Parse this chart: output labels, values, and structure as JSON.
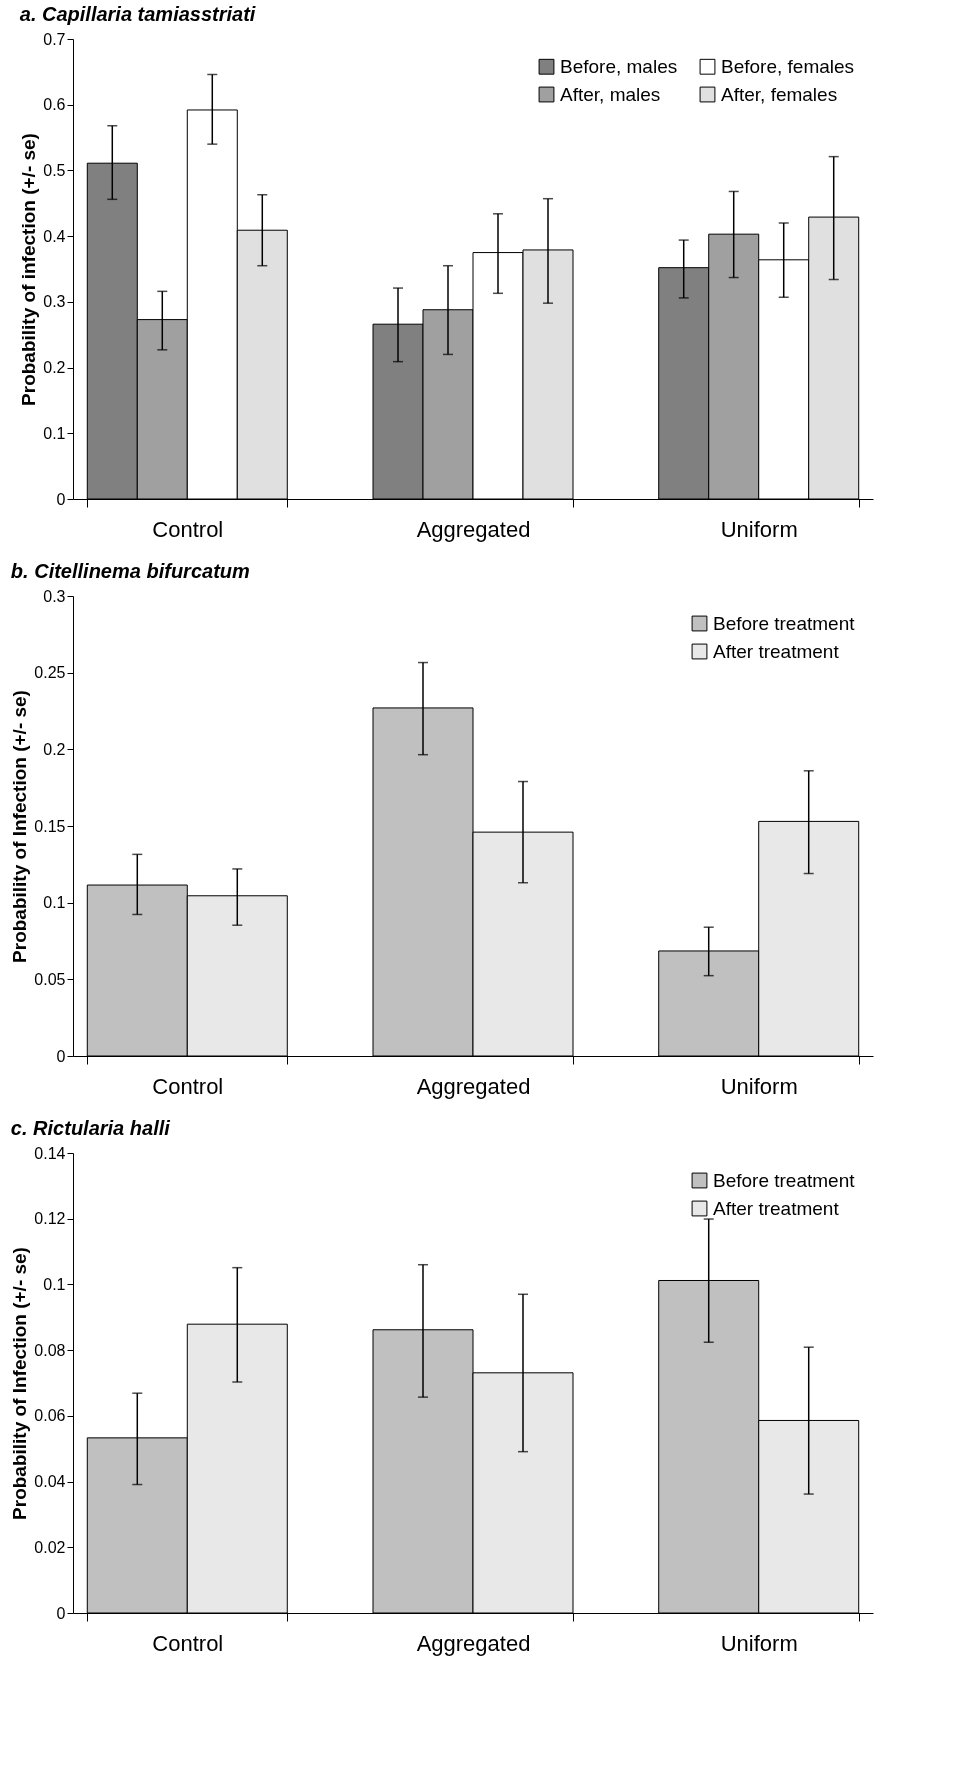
{
  "chart_data": [
    {
      "type": "bar",
      "title": "a. Capillaria tamiasstriati",
      "ylabel": "Probability of infection (+/- se)",
      "categories": [
        "Control",
        "Aggregated",
        "Uniform"
      ],
      "ylim": [
        0,
        0.7
      ],
      "yticks": [
        0,
        0.1,
        0.2,
        0.3,
        0.4,
        0.5,
        0.6,
        0.7
      ],
      "legend": "top right",
      "series": [
        {
          "name": "Before, males",
          "color": "#808080",
          "values": [
            0.511,
            0.266,
            0.352
          ],
          "errors": [
            [
              0.456,
              0.568
            ],
            [
              0.209,
              0.321
            ],
            [
              0.306,
              0.394
            ]
          ]
        },
        {
          "name": "After, males",
          "color": "#a0a0a0",
          "values": [
            0.273,
            0.288,
            0.403
          ],
          "errors": [
            [
              0.227,
              0.316
            ],
            [
              0.22,
              0.355
            ],
            [
              0.337,
              0.468
            ]
          ]
        },
        {
          "name": "Before, females",
          "color": "#ffffff",
          "values": [
            0.592,
            0.375,
            0.364
          ],
          "errors": [
            [
              0.54,
              0.646
            ],
            [
              0.313,
              0.434
            ],
            [
              0.307,
              0.42
            ]
          ]
        },
        {
          "name": "After, females",
          "color": "#e0e0e0",
          "values": [
            0.409,
            0.379,
            0.429
          ],
          "errors": [
            [
              0.355,
              0.463
            ],
            [
              0.298,
              0.457
            ],
            [
              0.334,
              0.521
            ]
          ]
        }
      ]
    },
    {
      "type": "bar",
      "title": "b. Citellinema bifurcatum",
      "ylabel": "Probability of Infection (+/- se)",
      "categories": [
        "Control",
        "Aggregated",
        "Uniform"
      ],
      "ylim": [
        0,
        0.3
      ],
      "yticks": [
        0,
        0.05,
        0.1,
        0.15,
        0.2,
        0.25,
        0.3
      ],
      "legend": "top right",
      "series": [
        {
          "name": "Before treatment",
          "color": "#c0c0c0",
          "values": [
            0.1115,
            0.227,
            0.0685
          ],
          "errors": [
            [
              0.0923,
              0.1315
            ],
            [
              0.1965,
              0.2566
            ],
            [
              0.0524,
              0.084
            ]
          ]
        },
        {
          "name": "After treatment",
          "color": "#e8e8e8",
          "values": [
            0.1045,
            0.146,
            0.153
          ],
          "errors": [
            [
              0.0853,
              0.122
            ],
            [
              0.113,
              0.179
            ],
            [
              0.119,
              0.186
            ]
          ]
        }
      ]
    },
    {
      "type": "bar",
      "title": "c. Rictularia halli",
      "ylabel": "Probability of Infection (+/- se)",
      "categories": [
        "Control",
        "Aggregated",
        "Uniform"
      ],
      "ylim": [
        0,
        0.14
      ],
      "yticks": [
        0,
        0.02,
        0.04,
        0.06,
        0.08,
        0.1,
        0.12,
        0.14
      ],
      "legend": "top right",
      "series": [
        {
          "name": "Before treatment",
          "color": "#c0c0c0",
          "values": [
            0.0533,
            0.0862,
            0.1012
          ],
          "errors": [
            [
              0.0391,
              0.0669
            ],
            [
              0.0657,
              0.106
            ],
            [
              0.0824,
              0.1199
            ]
          ]
        },
        {
          "name": "After treatment",
          "color": "#e8e8e8",
          "values": [
            0.0879,
            0.0731,
            0.0586
          ],
          "errors": [
            [
              0.0703,
              0.1051
            ],
            [
              0.0491,
              0.097
            ],
            [
              0.0362,
              0.0809
            ]
          ]
        }
      ]
    }
  ]
}
